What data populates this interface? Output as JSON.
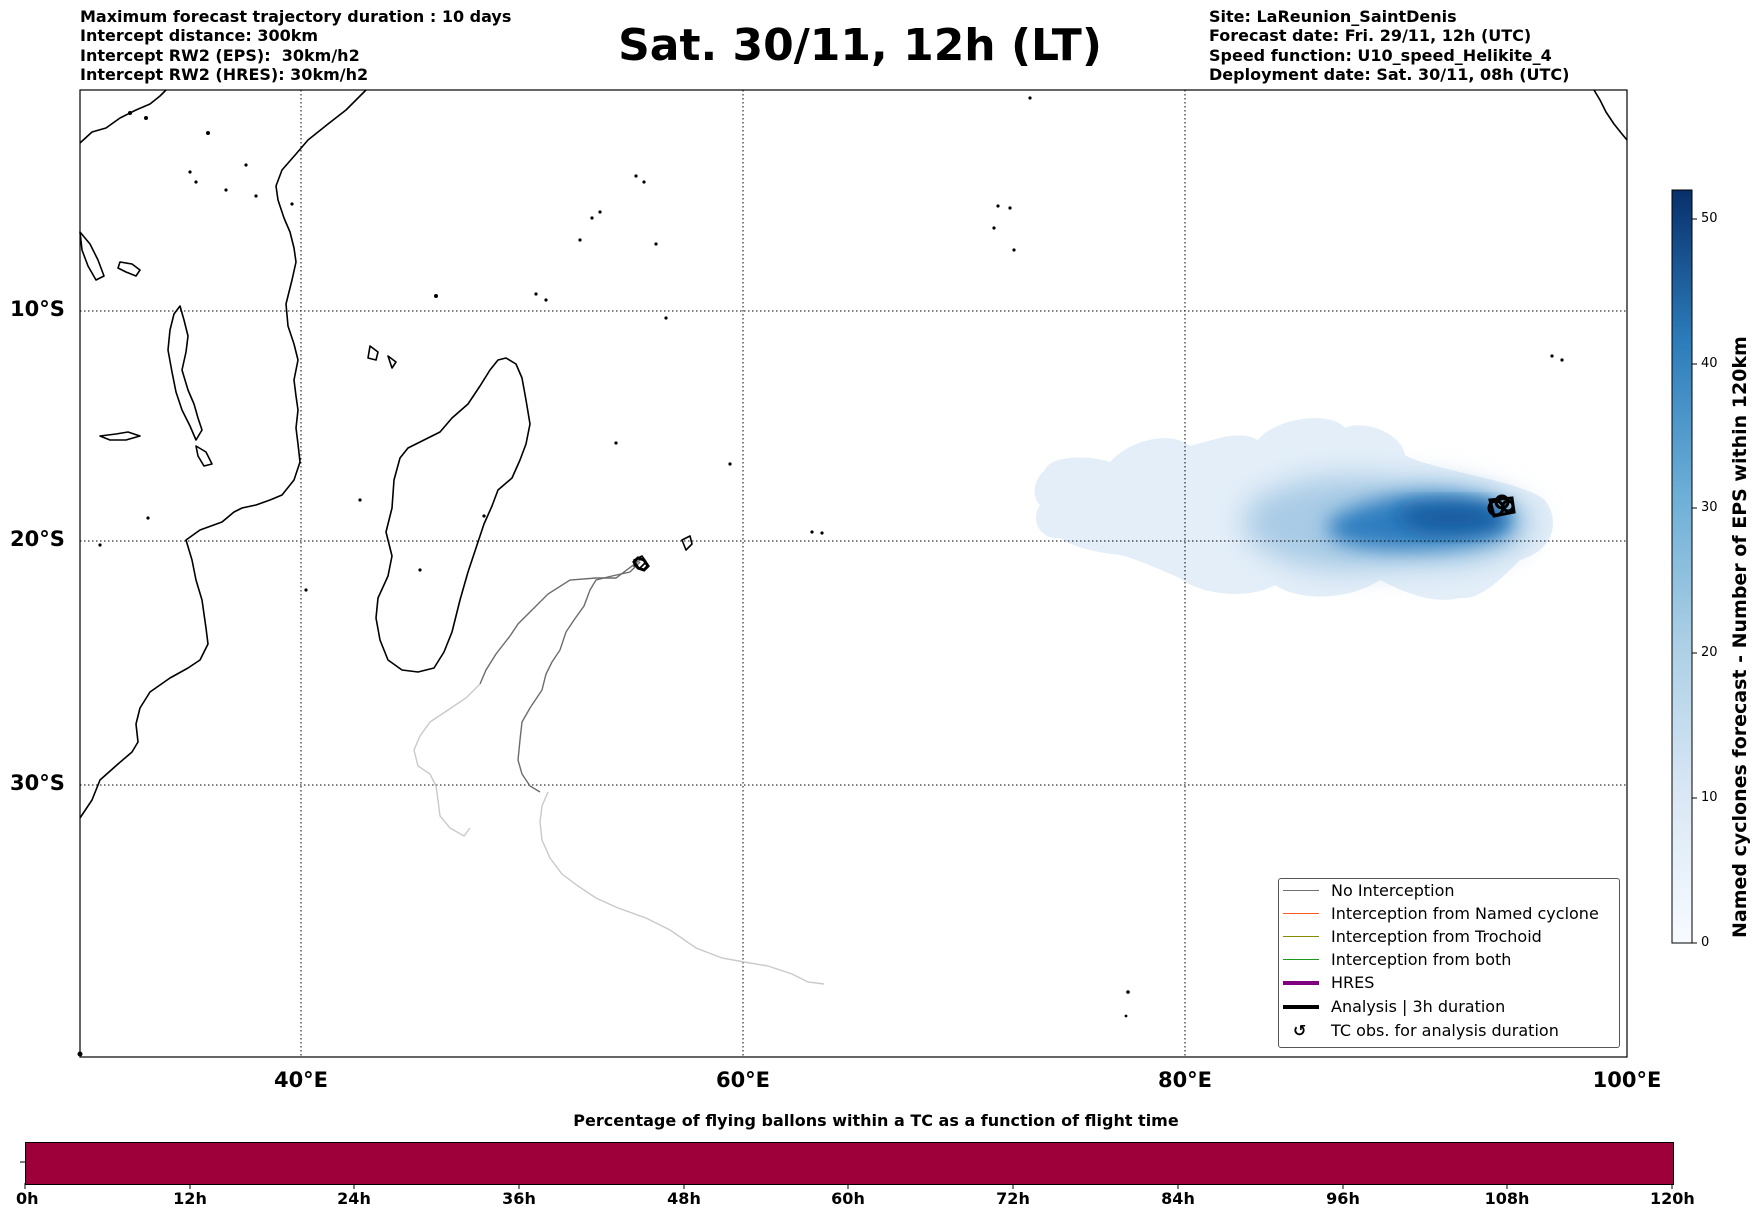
{
  "header_left": [
    "Maximum forecast trajectory duration : 10 days",
    "Intercept distance: 300km",
    "Intercept RW2 (EPS):  30km/h2",
    "Intercept RW2 (HRES): 30km/h2"
  ],
  "title": "Sat. 30/11, 12h (LT)",
  "header_right": [
    "Site: LaReunion_SaintDenis",
    "Forecast date: Fri. 29/11, 12h (UTC)",
    "Speed function: U10_speed_Helikite_4",
    "Deployment date: Sat. 30/11, 08h (UTC)"
  ],
  "map": {
    "lat_labels": [
      "10°S",
      "20°S",
      "30°S"
    ],
    "lon_labels": [
      "40°E",
      "60°E",
      "80°E",
      "100°E"
    ],
    "grid_style": "dotted",
    "coastline_color": "#000000",
    "density_colormap": [
      "#f7fbff",
      "#deebf7",
      "#c6dbef",
      "#9ecae1",
      "#6baed6",
      "#3182bd",
      "#08306b"
    ]
  },
  "colorbar": {
    "title": "Named cyclones forecast - Number of EPS within 120km",
    "ticks": [
      "0",
      "10",
      "20",
      "30",
      "40",
      "50"
    ],
    "range": [
      0,
      52
    ]
  },
  "legend": {
    "items": [
      {
        "label": "No Interception",
        "color": "#707070",
        "kind": "line-thin"
      },
      {
        "label": "Interception from Named cyclone",
        "color": "#ff5a1f",
        "kind": "line-thin"
      },
      {
        "label": "Interception from Trochoid",
        "color": "#8a8a00",
        "kind": "line-thin"
      },
      {
        "label": "Interception from both",
        "color": "#1a9a1a",
        "kind": "line-thin"
      },
      {
        "label": "HRES",
        "color": "#800080",
        "kind": "line-thick"
      },
      {
        "label": "Analysis | 3h duration",
        "color": "#000000",
        "kind": "line-thick"
      },
      {
        "label": "TC obs. for analysis duration",
        "color": "#000000",
        "kind": "symbol",
        "symbol": "↺"
      }
    ]
  },
  "time_bar": {
    "title": "Percentage of flying ballons within a TC as a function of flight time",
    "ticks": [
      "0h",
      "12h",
      "24h",
      "36h",
      "48h",
      "60h",
      "72h",
      "84h",
      "96h",
      "108h",
      "120h"
    ],
    "fill_color": "#9e003a"
  }
}
